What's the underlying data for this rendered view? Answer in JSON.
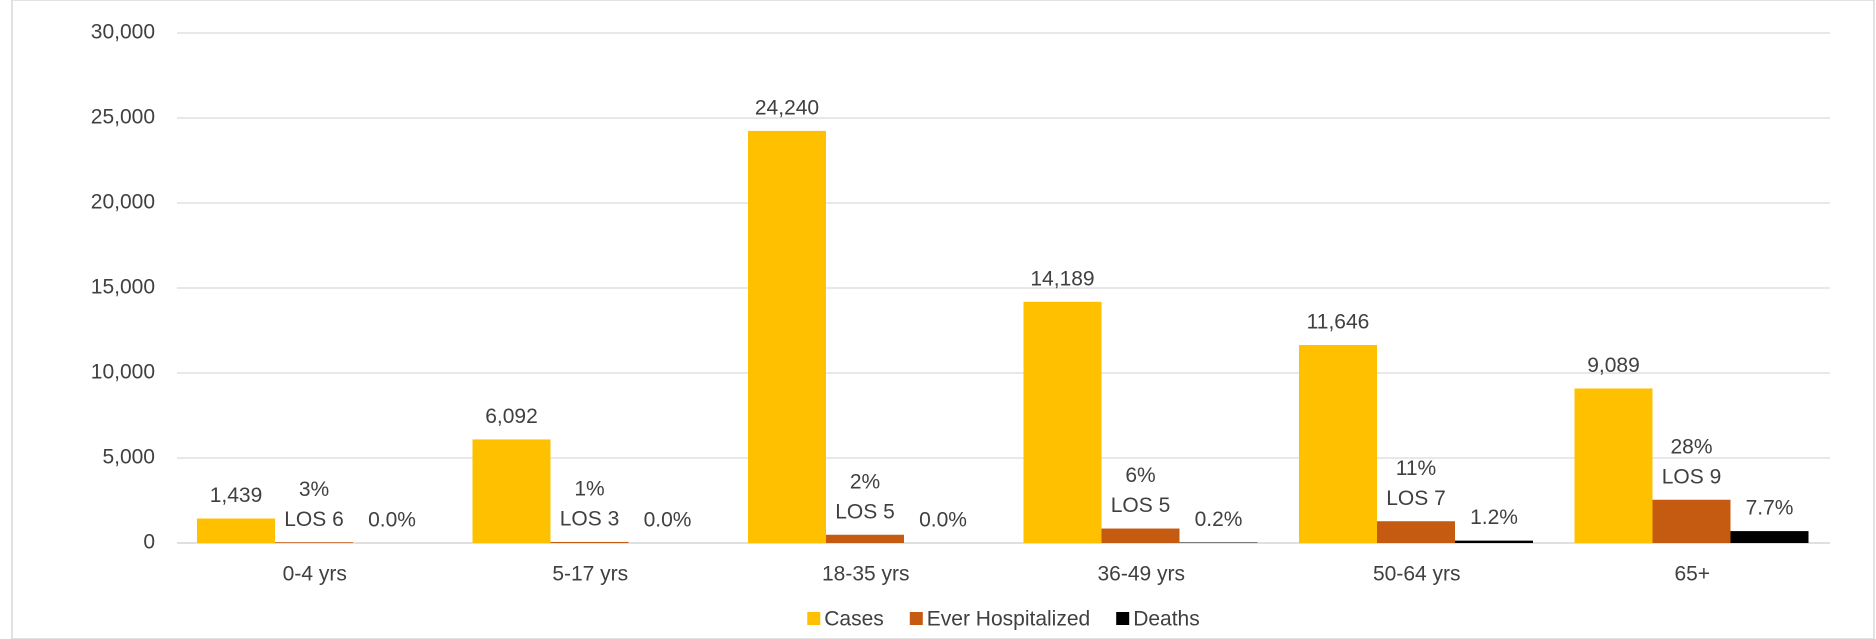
{
  "chart_data": {
    "type": "bar",
    "categories": [
      "0-4 yrs",
      "5-17 yrs",
      "18-35 yrs",
      "36-49 yrs",
      "50-64 yrs",
      "65+"
    ],
    "series": [
      {
        "name": "Cases",
        "color": "#FFC000",
        "values": [
          1439,
          6092,
          24240,
          14189,
          11646,
          9089
        ],
        "value_labels": [
          "1,439",
          "6,092",
          "24,240",
          "14,189",
          "11,646",
          "9,089"
        ]
      },
      {
        "name": "Ever Hospitalized",
        "color": "#C55A11",
        "values": [
          43,
          61,
          485,
          851,
          1281,
          2545
        ],
        "data_labels": [
          [
            "3%",
            "LOS 6"
          ],
          [
            "1%",
            "LOS 3"
          ],
          [
            "2%",
            "LOS 5"
          ],
          [
            "6%",
            "LOS 5"
          ],
          [
            "11%",
            "LOS 7"
          ],
          [
            "28%",
            "LOS 9"
          ]
        ]
      },
      {
        "name": "Deaths",
        "color": "#000000",
        "values": [
          0,
          0,
          0,
          28,
          140,
          700
        ],
        "data_labels": [
          [
            "0.0%"
          ],
          [
            "0.0%"
          ],
          [
            "0.0%"
          ],
          [
            "0.2%"
          ],
          [
            "1.2%"
          ],
          [
            "7.7%"
          ]
        ]
      }
    ],
    "ylim": [
      0,
      30000
    ],
    "yticks": [
      0,
      {
        "value": 5000,
        "label": "5,000"
      },
      {
        "value": 10000,
        "label": "10,000"
      },
      {
        "value": 15000,
        "label": "15,000"
      },
      {
        "value": 20000,
        "label": "20,000"
      },
      {
        "value": 25000,
        "label": "25,000"
      },
      {
        "value": 30000,
        "label": "30,000"
      }
    ],
    "grid": true,
    "legend": "bottom"
  }
}
